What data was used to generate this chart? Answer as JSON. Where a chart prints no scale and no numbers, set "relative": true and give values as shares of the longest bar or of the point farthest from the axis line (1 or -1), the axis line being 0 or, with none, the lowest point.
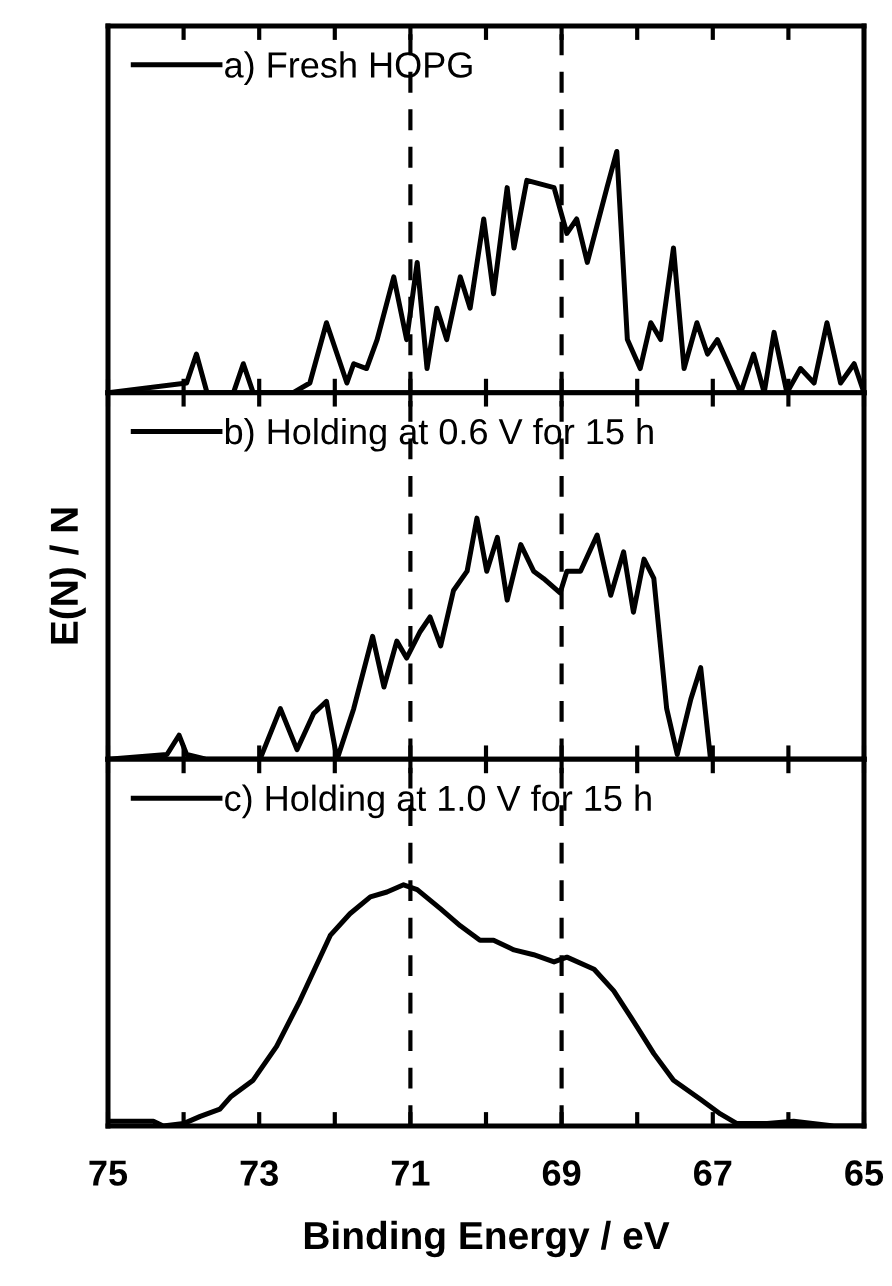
{
  "chart_data": [
    {
      "type": "line",
      "relative": true,
      "xlim": [
        75,
        65
      ],
      "xticks": [
        {
          "value": 75,
          "label": null
        },
        {
          "value": 74,
          "label": null
        },
        {
          "value": 73,
          "label": null
        },
        {
          "value": 72,
          "label": null
        },
        {
          "value": 71,
          "label": null
        },
        {
          "value": 70,
          "label": null
        },
        {
          "value": 69,
          "label": null
        },
        {
          "value": 68,
          "label": null
        },
        {
          "value": 67,
          "label": null
        },
        {
          "value": 66,
          "label": null
        },
        {
          "value": 65,
          "label": null
        }
      ],
      "tick_labels": false,
      "legend": "top left",
      "grid": false,
      "ref_lines": [
        {
          "axis": "x",
          "value": 71,
          "line_style": "dashed",
          "color": "#000000"
        },
        {
          "axis": "x",
          "value": 69,
          "line_style": "dashed",
          "color": "#000000"
        }
      ],
      "series": [
        {
          "name": "a) Fresh HOPG",
          "color": "#000000",
          "x": [
            75.0,
            73.96,
            73.83,
            73.69,
            73.34,
            73.21,
            73.08,
            72.55,
            72.33,
            72.11,
            71.97,
            71.84,
            71.75,
            71.58,
            71.44,
            71.22,
            71.05,
            70.91,
            70.78,
            70.65,
            70.52,
            70.34,
            70.21,
            70.03,
            69.9,
            69.72,
            69.63,
            69.46,
            69.1,
            68.93,
            68.8,
            68.66,
            68.4,
            68.27,
            68.13,
            67.96,
            67.82,
            67.69,
            67.52,
            67.38,
            67.21,
            67.07,
            66.94,
            66.77,
            66.63,
            66.46,
            66.32,
            66.19,
            66.02,
            65.84,
            65.66,
            65.49,
            65.31,
            65.13,
            65.0
          ],
          "values": [
            0,
            0.04,
            0.16,
            0,
            0,
            0.12,
            0,
            0,
            0.04,
            0.29,
            0.16,
            0.04,
            0.12,
            0.1,
            0.22,
            0.48,
            0.22,
            0.54,
            0.1,
            0.35,
            0.22,
            0.48,
            0.35,
            0.72,
            0.41,
            0.85,
            0.6,
            0.88,
            0.85,
            0.66,
            0.72,
            0.54,
            0.85,
            1.0,
            0.22,
            0.1,
            0.29,
            0.22,
            0.6,
            0.1,
            0.29,
            0.16,
            0.22,
            0.1,
            0,
            0.16,
            0,
            0.25,
            0,
            0.1,
            0.04,
            0.29,
            0.04,
            0.12,
            0
          ]
        }
      ]
    },
    {
      "type": "line",
      "relative": true,
      "ylabel": "E(N) / N",
      "xlim": [
        75,
        65
      ],
      "xticks": [
        {
          "value": 75,
          "label": null
        },
        {
          "value": 74,
          "label": null
        },
        {
          "value": 73,
          "label": null
        },
        {
          "value": 72,
          "label": null
        },
        {
          "value": 71,
          "label": null
        },
        {
          "value": 70,
          "label": null
        },
        {
          "value": 69,
          "label": null
        },
        {
          "value": 68,
          "label": null
        },
        {
          "value": 67,
          "label": null
        },
        {
          "value": 66,
          "label": null
        },
        {
          "value": 65,
          "label": null
        }
      ],
      "tick_labels": false,
      "legend": "top left",
      "grid": false,
      "ref_lines": [
        {
          "axis": "x",
          "value": 71,
          "line_style": "dashed",
          "color": "#000000"
        },
        {
          "axis": "x",
          "value": 69,
          "line_style": "dashed",
          "color": "#000000"
        }
      ],
      "series": [
        {
          "name": "b) Holding at 0.6 V for 15 h",
          "color": "#000000",
          "x": [
            75.0,
            74.22,
            74.06,
            73.96,
            73.69,
            72.99,
            72.72,
            72.5,
            72.28,
            72.11,
            71.97,
            71.75,
            71.5,
            71.35,
            71.18,
            71.05,
            70.87,
            70.74,
            70.6,
            70.43,
            70.25,
            70.12,
            69.99,
            69.85,
            69.72,
            69.54,
            69.37,
            69.24,
            69.02,
            68.93,
            68.75,
            68.53,
            68.35,
            68.18,
            68.05,
            67.91,
            67.78,
            67.61,
            67.47,
            67.29,
            67.16,
            67.03,
            65.0
          ],
          "values": [
            0,
            0.02,
            0.1,
            0.02,
            0,
            0,
            0.21,
            0.04,
            0.19,
            0.24,
            0,
            0.21,
            0.51,
            0.3,
            0.49,
            0.42,
            0.53,
            0.59,
            0.47,
            0.7,
            0.78,
            1.0,
            0.78,
            0.92,
            0.66,
            0.89,
            0.78,
            0.75,
            0.69,
            0.78,
            0.78,
            0.93,
            0.68,
            0.86,
            0.61,
            0.83,
            0.75,
            0.21,
            0.02,
            0.25,
            0.38,
            0,
            0
          ]
        }
      ]
    },
    {
      "type": "line",
      "relative": true,
      "xlabel": "Binding Energy / eV",
      "xlim": [
        75,
        65
      ],
      "xticks": [
        75,
        {
          "value": 74,
          "label": null
        },
        73,
        {
          "value": 72,
          "label": null
        },
        71,
        {
          "value": 70,
          "label": null
        },
        69,
        {
          "value": 68,
          "label": null
        },
        67,
        {
          "value": 66,
          "label": null
        },
        65
      ],
      "tick_labels": "x",
      "legend": "top left",
      "grid": false,
      "ref_lines": [
        {
          "axis": "x",
          "value": 71,
          "line_style": "dashed",
          "color": "#000000"
        },
        {
          "axis": "x",
          "value": 69,
          "line_style": "dashed",
          "color": "#000000"
        }
      ],
      "series": [
        {
          "name": "c) Holding at 1.0 V for 15 h",
          "color": "#000000",
          "x": [
            75.0,
            74.4,
            74.27,
            74.0,
            73.78,
            73.52,
            73.38,
            73.08,
            72.77,
            72.46,
            72.06,
            71.8,
            71.53,
            71.31,
            71.09,
            70.91,
            70.6,
            70.34,
            70.08,
            69.9,
            69.63,
            69.37,
            69.1,
            68.93,
            68.57,
            68.31,
            68.04,
            67.78,
            67.52,
            67.16,
            66.9,
            66.68,
            66.28,
            65.93,
            65.4,
            65.0
          ],
          "values": [
            0.02,
            0.02,
            0,
            0.01,
            0.04,
            0.07,
            0.12,
            0.19,
            0.33,
            0.52,
            0.79,
            0.88,
            0.95,
            0.97,
            1.0,
            0.98,
            0.9,
            0.83,
            0.77,
            0.77,
            0.73,
            0.71,
            0.68,
            0.7,
            0.65,
            0.56,
            0.43,
            0.3,
            0.19,
            0.11,
            0.05,
            0.01,
            0.01,
            0.02,
            0,
            0
          ]
        }
      ]
    }
  ]
}
